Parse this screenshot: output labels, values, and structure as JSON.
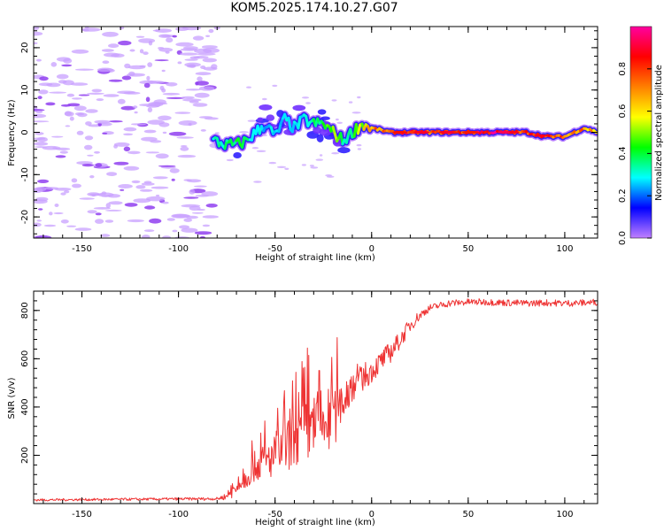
{
  "title": "KOM5.2025.174.10.27.G07",
  "chart_data": [
    {
      "type": "heatmap",
      "title": "KOM5.2025.174.10.27.G07",
      "xlabel": "Height of straight line (km)",
      "ylabel": "Frequency (Hz)",
      "xlim": [
        -175,
        117
      ],
      "ylim": [
        -25,
        25
      ],
      "xticks": [
        -150,
        -100,
        -50,
        0,
        50,
        100
      ],
      "yticks": [
        -20,
        -10,
        0,
        10,
        20
      ],
      "colorbar": {
        "label": "Normalized spectral amplitude",
        "range": [
          0,
          1
        ],
        "ticks": [
          0.0,
          0.2,
          0.4,
          0.6,
          0.8
        ],
        "colormap": [
          "#c080ff",
          "#0000ff",
          "#00ffff",
          "#00ff00",
          "#ffff00",
          "#ff8000",
          "#ff0000",
          "#ff00a0"
        ]
      },
      "ridge": {
        "x": [
          -82,
          -75,
          -70,
          -65,
          -60,
          -55,
          -50,
          -45,
          -40,
          -35,
          -30,
          -25,
          -20,
          -15,
          -10,
          -5,
          0,
          10,
          20,
          30,
          40,
          50,
          60,
          70,
          80,
          90,
          100,
          110,
          117
        ],
        "y": [
          -2,
          -3,
          -3,
          -2,
          0,
          2,
          -1,
          3,
          1,
          3,
          2,
          2,
          0,
          -2,
          0,
          2,
          1,
          0,
          0,
          0,
          0,
          0,
          0,
          0,
          0,
          -1,
          -1,
          1,
          0
        ],
        "amplitude": [
          0.3,
          0.35,
          0.4,
          0.35,
          0.3,
          0.25,
          0.3,
          0.25,
          0.3,
          0.3,
          0.35,
          0.4,
          0.5,
          0.35,
          0.4,
          0.55,
          0.7,
          0.8,
          0.85,
          0.8,
          0.75,
          0.8,
          0.9,
          0.85,
          0.75,
          0.8,
          0.75,
          0.7,
          0.6
        ]
      }
    },
    {
      "type": "line",
      "xlabel": "Height of straight line (km)",
      "ylabel": "SNR (v/v)",
      "xlim": [
        -175,
        117
      ],
      "ylim": [
        0,
        880
      ],
      "xticks": [
        -150,
        -100,
        -50,
        0,
        50,
        100
      ],
      "yticks": [
        200,
        400,
        600,
        800
      ],
      "color": "#ee3333",
      "envelope": {
        "x": [
          -175,
          -120,
          -80,
          -75,
          -70,
          -65,
          -60,
          -55,
          -50,
          -45,
          -40,
          -35,
          -30,
          -25,
          -20,
          -15,
          -10,
          -5,
          0,
          5,
          10,
          15,
          20,
          25,
          30,
          40,
          50,
          60,
          70,
          80,
          90,
          100,
          110,
          117
        ],
        "y": [
          15,
          18,
          20,
          30,
          60,
          110,
          160,
          170,
          200,
          230,
          260,
          290,
          320,
          330,
          350,
          420,
          500,
          520,
          550,
          590,
          630,
          680,
          740,
          780,
          810,
          830,
          835,
          835,
          832,
          830,
          832,
          830,
          832,
          835
        ],
        "noise": [
          5,
          5,
          6,
          15,
          40,
          60,
          80,
          100,
          110,
          130,
          140,
          160,
          180,
          200,
          160,
          120,
          100,
          60,
          50,
          45,
          45,
          35,
          30,
          20,
          15,
          15,
          14,
          14,
          14,
          14,
          14,
          14,
          14,
          14
        ]
      }
    }
  ]
}
